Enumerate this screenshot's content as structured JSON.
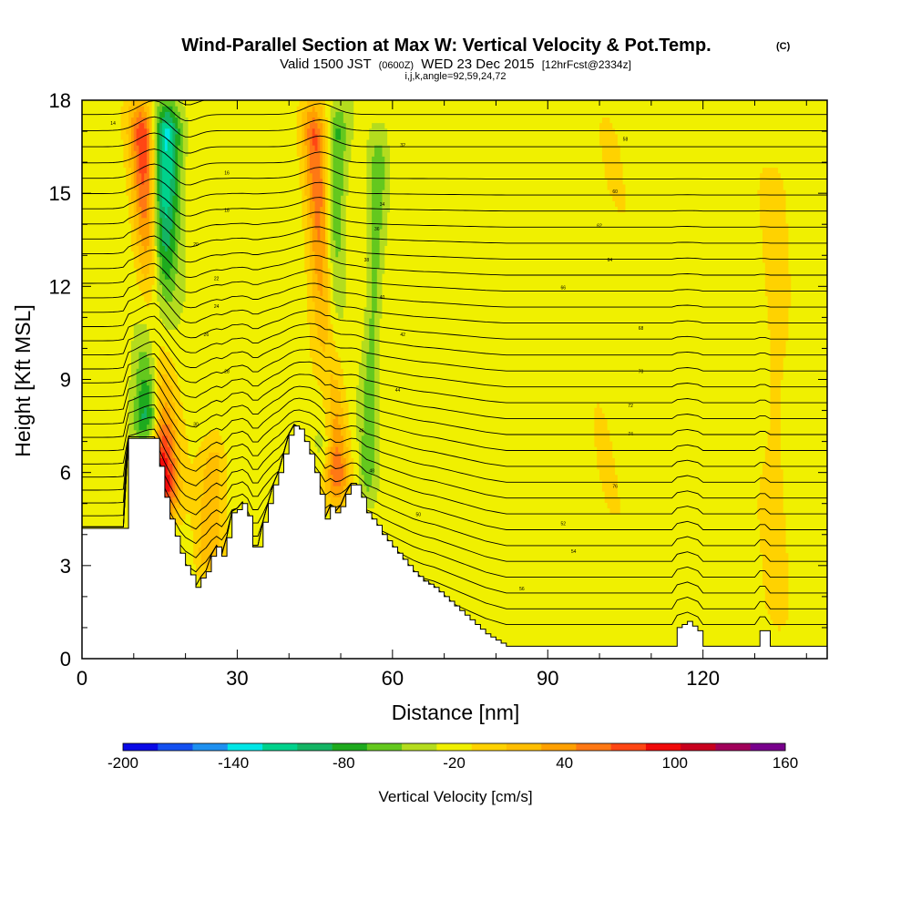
{
  "title": {
    "main": "Wind-Parallel Section at Max W: Vertical Velocity & Pot.Temp.",
    "main_suffix": "(C)",
    "valid_prefix": "Valid 1500 JST",
    "valid_utc": "(0600Z)",
    "valid_date": "WED 23 Dec 2015",
    "forecast": "[12hrFcst@2334z]",
    "indices": "i,j,k,angle=92,59,24,72"
  },
  "chart_data": {
    "type": "heatmap",
    "xlabel": "Distance [nm]",
    "ylabel": "Height [Kft MSL]",
    "xlim": [
      0,
      144
    ],
    "ylim": [
      0,
      18
    ],
    "x_ticks": [
      "0",
      "30",
      "60",
      "90",
      "120"
    ],
    "y_ticks": [
      "0",
      "3",
      "6",
      "9",
      "12",
      "15",
      "18"
    ],
    "colorbar": {
      "label": "Vertical Velocity [cm/s]",
      "min": -200,
      "max": 160,
      "step": 20,
      "tick_labels": [
        "-200",
        "-140",
        "-80",
        "-20",
        "40",
        "100",
        "160"
      ],
      "colors": [
        "#0a0ae6",
        "#1450f0",
        "#1e90f0",
        "#00e6e6",
        "#00d28c",
        "#14b464",
        "#1eaa1e",
        "#64c81e",
        "#b4dc1e",
        "#f0f000",
        "#ffd200",
        "#ffbe00",
        "#ffa000",
        "#ff7814",
        "#ff4614",
        "#f00a0a",
        "#c8001e",
        "#a0005a",
        "#78008c"
      ]
    },
    "background_value": -10,
    "terrain_kft": [
      [
        0,
        4.2
      ],
      [
        8,
        4.2
      ],
      [
        9,
        7.1
      ],
      [
        11,
        7.1
      ],
      [
        12,
        7.1
      ],
      [
        14,
        7.1
      ],
      [
        15,
        6.2
      ],
      [
        16,
        5.2
      ],
      [
        17,
        4.5
      ],
      [
        19,
        3.4
      ],
      [
        20,
        3.0
      ],
      [
        21,
        2.7
      ],
      [
        22,
        2.3
      ],
      [
        23,
        2.6
      ],
      [
        24,
        2.8
      ],
      [
        25,
        3.3
      ],
      [
        26,
        3.6
      ],
      [
        27,
        3.3
      ],
      [
        28,
        3.9
      ],
      [
        29,
        4.7
      ],
      [
        30,
        4.8
      ],
      [
        31,
        5.0
      ],
      [
        32,
        4.6
      ],
      [
        33,
        3.6
      ],
      [
        34,
        3.6
      ],
      [
        35,
        4.4
      ],
      [
        36,
        5.0
      ],
      [
        37,
        5.6
      ],
      [
        38,
        6.0
      ],
      [
        39,
        6.6
      ],
      [
        40,
        7.2
      ],
      [
        41,
        7.5
      ],
      [
        42,
        7.4
      ],
      [
        43,
        7.0
      ],
      [
        44,
        6.6
      ],
      [
        45,
        6.0
      ],
      [
        46,
        5.3
      ],
      [
        47,
        4.5
      ],
      [
        48,
        4.9
      ],
      [
        49,
        4.7
      ],
      [
        50,
        4.9
      ],
      [
        51,
        5.3
      ],
      [
        52,
        5.6
      ],
      [
        53,
        5.6
      ],
      [
        54,
        5.2
      ],
      [
        55,
        4.7
      ],
      [
        56,
        4.5
      ],
      [
        57,
        4.3
      ],
      [
        58,
        4.0
      ],
      [
        60,
        3.6
      ],
      [
        62,
        3.2
      ],
      [
        64,
        2.8
      ],
      [
        66,
        2.5
      ],
      [
        68,
        2.3
      ],
      [
        70,
        2.0
      ],
      [
        72,
        1.7
      ],
      [
        74,
        1.4
      ],
      [
        76,
        1.1
      ],
      [
        78,
        0.8
      ],
      [
        80,
        0.6
      ],
      [
        82,
        0.4
      ],
      [
        84,
        0.4
      ],
      [
        114,
        0.4
      ],
      [
        115,
        1.0
      ],
      [
        117,
        1.2
      ],
      [
        119,
        0.9
      ],
      [
        120,
        0.4
      ],
      [
        130,
        0.4
      ],
      [
        131,
        0.9
      ],
      [
        132,
        0.9
      ],
      [
        133,
        0.4
      ],
      [
        144,
        0.4
      ]
    ],
    "features": [
      {
        "name": "updraft-west",
        "base_x": 16.5,
        "top_x": 11.5,
        "y0": 4.5,
        "y1": 18,
        "width_nm": 2.6,
        "value": 120
      },
      {
        "name": "downdraft-west",
        "base_x": 13.0,
        "top_x": 16.5,
        "y0": 6.8,
        "y1": 18,
        "width_nm": 3.0,
        "value": -120
      },
      {
        "name": "updraft-east",
        "base_x": 49.5,
        "top_x": 44.5,
        "y0": 5.0,
        "y1": 18,
        "width_nm": 2.4,
        "value": 90
      },
      {
        "name": "downdraft-east",
        "base_x": 47.0,
        "top_x": 49.5,
        "y0": 6.0,
        "y1": 18,
        "width_nm": 2.2,
        "value": -60
      },
      {
        "name": "downdraft-mid",
        "base_x": 55.0,
        "top_x": 57.5,
        "y0": 5.0,
        "y1": 17,
        "width_nm": 1.6,
        "value": -40
      },
      {
        "name": "updraft-ridge",
        "base_x": 24.0,
        "top_x": 26.0,
        "y0": 2.5,
        "y1": 7.5,
        "width_nm": 2.5,
        "value": 40
      },
      {
        "name": "weak-up-far",
        "base_x": 134.0,
        "top_x": 134.0,
        "y0": 1.0,
        "y1": 16,
        "width_nm": 2.2,
        "value": 20
      },
      {
        "name": "weak-up-far2",
        "base_x": 100.0,
        "top_x": 102.0,
        "y0": 0.5,
        "y1": 18,
        "width_nm": 3.5,
        "value": 5
      }
    ],
    "contour_labels": [
      "14",
      "16",
      "18",
      "20",
      "22",
      "24",
      "26",
      "28",
      "30",
      "32",
      "34",
      "36",
      "38",
      "40",
      "42",
      "44",
      "46",
      "48",
      "50",
      "52",
      "54",
      "56",
      "58",
      "60",
      "62",
      "64",
      "66",
      "68",
      "70",
      "72",
      "74",
      "76",
      "78",
      "80",
      "82",
      "84",
      "86",
      "88",
      "90",
      "92",
      "94"
    ]
  }
}
